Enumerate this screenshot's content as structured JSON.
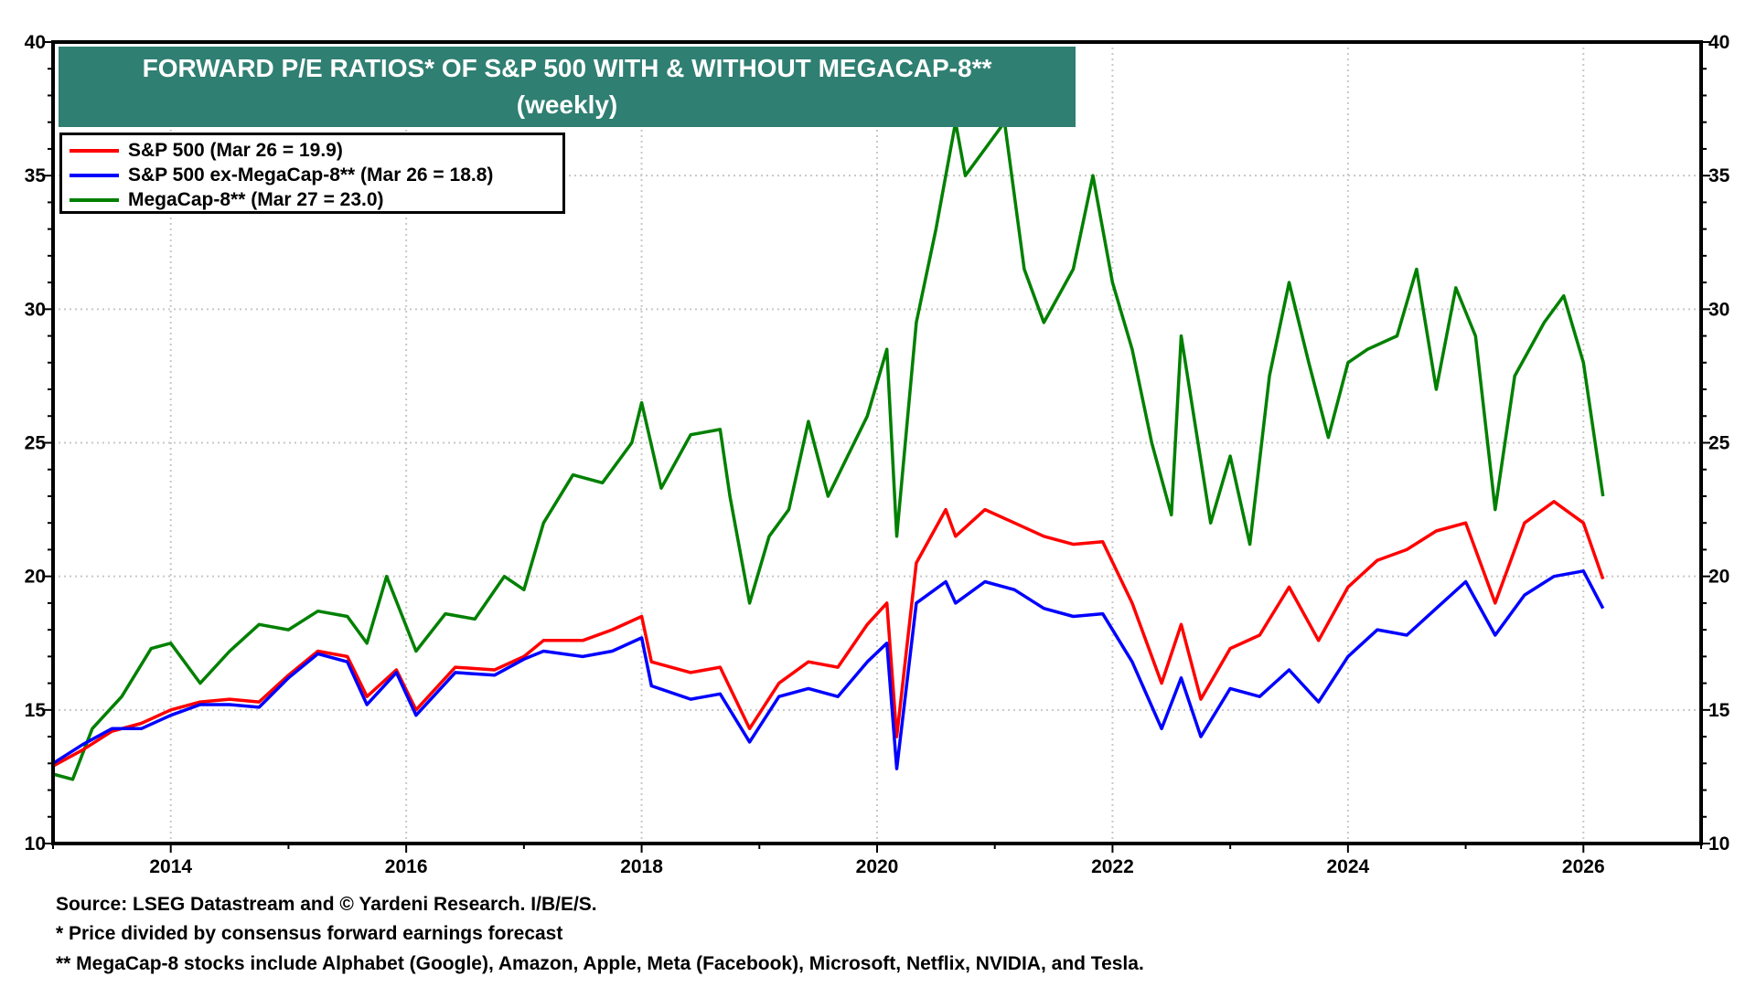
{
  "chart_data": {
    "type": "line",
    "title": "FORWARD P/E RATIOS* OF S&P 500 WITH & WITHOUT  MEGACAP-8**",
    "subtitle": "(weekly)",
    "xlabel": "",
    "ylabel": "",
    "xlim": [
      "2013-01",
      "2027-01"
    ],
    "ylim": [
      10,
      40
    ],
    "y_ticks": [
      "10",
      "15",
      "20",
      "25",
      "30",
      "35",
      "40"
    ],
    "x_ticks": [
      "2014",
      "2016",
      "2018",
      "2020",
      "2022",
      "2024",
      "2026"
    ],
    "grid": true,
    "legend_position": "top-left",
    "series": [
      {
        "name": "S&P 500 (Mar 26 = 19.9)",
        "color": "#ff0000",
        "points": [
          [
            "2013-01",
            12.9
          ],
          [
            "2013-04",
            13.5
          ],
          [
            "2013-07",
            14.2
          ],
          [
            "2013-10",
            14.5
          ],
          [
            "2014-01",
            15.0
          ],
          [
            "2014-04",
            15.3
          ],
          [
            "2014-07",
            15.4
          ],
          [
            "2014-10",
            15.3
          ],
          [
            "2015-01",
            16.3
          ],
          [
            "2015-04",
            17.2
          ],
          [
            "2015-07",
            17.0
          ],
          [
            "2015-09",
            15.5
          ],
          [
            "2015-12",
            16.5
          ],
          [
            "2016-02",
            15.0
          ],
          [
            "2016-06",
            16.6
          ],
          [
            "2016-10",
            16.5
          ],
          [
            "2017-01",
            17.0
          ],
          [
            "2017-03",
            17.6
          ],
          [
            "2017-07",
            17.6
          ],
          [
            "2017-10",
            18.0
          ],
          [
            "2018-01",
            18.5
          ],
          [
            "2018-02",
            16.8
          ],
          [
            "2018-06",
            16.4
          ],
          [
            "2018-09",
            16.6
          ],
          [
            "2018-12",
            14.3
          ],
          [
            "2019-03",
            16.0
          ],
          [
            "2019-06",
            16.8
          ],
          [
            "2019-09",
            16.6
          ],
          [
            "2019-12",
            18.2
          ],
          [
            "2020-02",
            19.0
          ],
          [
            "2020-03",
            14.0
          ],
          [
            "2020-05",
            20.5
          ],
          [
            "2020-08",
            22.5
          ],
          [
            "2020-09",
            21.5
          ],
          [
            "2020-12",
            22.5
          ],
          [
            "2021-03",
            22.0
          ],
          [
            "2021-06",
            21.5
          ],
          [
            "2021-09",
            21.2
          ],
          [
            "2021-12",
            21.3
          ],
          [
            "2022-03",
            19.0
          ],
          [
            "2022-06",
            16.0
          ],
          [
            "2022-08",
            18.2
          ],
          [
            "2022-10",
            15.4
          ],
          [
            "2023-01",
            17.3
          ],
          [
            "2023-04",
            17.8
          ],
          [
            "2023-07",
            19.6
          ],
          [
            "2023-10",
            17.6
          ],
          [
            "2024-01",
            19.6
          ],
          [
            "2024-04",
            20.6
          ],
          [
            "2024-07",
            21.0
          ],
          [
            "2024-10",
            21.7
          ],
          [
            "2025-01",
            22.0
          ],
          [
            "2025-04",
            19.0
          ],
          [
            "2025-07",
            22.0
          ],
          [
            "2025-10",
            22.8
          ],
          [
            "2026-01",
            22.0
          ],
          [
            "2026-03",
            19.9
          ]
        ]
      },
      {
        "name": "S&P 500 ex-MegaCap-8** (Mar 26 = 18.8)",
        "color": "#0000ff",
        "points": [
          [
            "2013-01",
            13.0
          ],
          [
            "2013-04",
            13.7
          ],
          [
            "2013-07",
            14.3
          ],
          [
            "2013-10",
            14.3
          ],
          [
            "2014-01",
            14.8
          ],
          [
            "2014-04",
            15.2
          ],
          [
            "2014-07",
            15.2
          ],
          [
            "2014-10",
            15.1
          ],
          [
            "2015-01",
            16.2
          ],
          [
            "2015-04",
            17.1
          ],
          [
            "2015-07",
            16.8
          ],
          [
            "2015-09",
            15.2
          ],
          [
            "2015-12",
            16.4
          ],
          [
            "2016-02",
            14.8
          ],
          [
            "2016-06",
            16.4
          ],
          [
            "2016-10",
            16.3
          ],
          [
            "2017-01",
            16.9
          ],
          [
            "2017-03",
            17.2
          ],
          [
            "2017-07",
            17.0
          ],
          [
            "2017-10",
            17.2
          ],
          [
            "2018-01",
            17.7
          ],
          [
            "2018-02",
            15.9
          ],
          [
            "2018-06",
            15.4
          ],
          [
            "2018-09",
            15.6
          ],
          [
            "2018-12",
            13.8
          ],
          [
            "2019-03",
            15.5
          ],
          [
            "2019-06",
            15.8
          ],
          [
            "2019-09",
            15.5
          ],
          [
            "2019-12",
            16.8
          ],
          [
            "2020-02",
            17.5
          ],
          [
            "2020-03",
            12.8
          ],
          [
            "2020-05",
            19.0
          ],
          [
            "2020-08",
            19.8
          ],
          [
            "2020-09",
            19.0
          ],
          [
            "2020-12",
            19.8
          ],
          [
            "2021-03",
            19.5
          ],
          [
            "2021-06",
            18.8
          ],
          [
            "2021-09",
            18.5
          ],
          [
            "2021-12",
            18.6
          ],
          [
            "2022-03",
            16.8
          ],
          [
            "2022-06",
            14.3
          ],
          [
            "2022-08",
            16.2
          ],
          [
            "2022-10",
            14.0
          ],
          [
            "2023-01",
            15.8
          ],
          [
            "2023-04",
            15.5
          ],
          [
            "2023-07",
            16.5
          ],
          [
            "2023-10",
            15.3
          ],
          [
            "2024-01",
            17.0
          ],
          [
            "2024-04",
            18.0
          ],
          [
            "2024-07",
            17.8
          ],
          [
            "2024-10",
            18.8
          ],
          [
            "2025-01",
            19.8
          ],
          [
            "2025-04",
            17.8
          ],
          [
            "2025-07",
            19.3
          ],
          [
            "2025-10",
            20.0
          ],
          [
            "2026-01",
            20.2
          ],
          [
            "2026-03",
            18.8
          ]
        ]
      },
      {
        "name": "MegaCap-8** (Mar 27 = 23.0)",
        "color": "#008000",
        "points": [
          [
            "2013-01",
            12.6
          ],
          [
            "2013-03",
            12.4
          ],
          [
            "2013-05",
            14.3
          ],
          [
            "2013-08",
            15.5
          ],
          [
            "2013-11",
            17.3
          ],
          [
            "2014-01",
            17.5
          ],
          [
            "2014-04",
            16.0
          ],
          [
            "2014-07",
            17.2
          ],
          [
            "2014-10",
            18.2
          ],
          [
            "2015-01",
            18.0
          ],
          [
            "2015-04",
            18.7
          ],
          [
            "2015-07",
            18.5
          ],
          [
            "2015-09",
            17.5
          ],
          [
            "2015-11",
            20.0
          ],
          [
            "2016-02",
            17.2
          ],
          [
            "2016-05",
            18.6
          ],
          [
            "2016-08",
            18.4
          ],
          [
            "2016-11",
            20.0
          ],
          [
            "2017-01",
            19.5
          ],
          [
            "2017-03",
            22.0
          ],
          [
            "2017-06",
            23.8
          ],
          [
            "2017-09",
            23.5
          ],
          [
            "2017-12",
            25.0
          ],
          [
            "2018-01",
            26.5
          ],
          [
            "2018-03",
            23.3
          ],
          [
            "2018-06",
            25.3
          ],
          [
            "2018-09",
            25.5
          ],
          [
            "2018-10",
            23.0
          ],
          [
            "2018-12",
            19.0
          ],
          [
            "2019-02",
            21.5
          ],
          [
            "2019-04",
            22.5
          ],
          [
            "2019-06",
            25.8
          ],
          [
            "2019-08",
            23.0
          ],
          [
            "2019-10",
            24.5
          ],
          [
            "2019-12",
            26.0
          ],
          [
            "2020-02",
            28.5
          ],
          [
            "2020-03",
            21.5
          ],
          [
            "2020-05",
            29.5
          ],
          [
            "2020-07",
            33.0
          ],
          [
            "2020-09",
            37.0
          ],
          [
            "2020-10",
            35.0
          ],
          [
            "2020-12",
            36.0
          ],
          [
            "2021-02",
            37.0
          ],
          [
            "2021-04",
            31.5
          ],
          [
            "2021-06",
            29.5
          ],
          [
            "2021-09",
            31.5
          ],
          [
            "2021-11",
            35.0
          ],
          [
            "2022-01",
            31.0
          ],
          [
            "2022-03",
            28.5
          ],
          [
            "2022-05",
            25.0
          ],
          [
            "2022-07",
            22.3
          ],
          [
            "2022-08",
            29.0
          ],
          [
            "2022-11",
            22.0
          ],
          [
            "2023-01",
            24.5
          ],
          [
            "2023-03",
            21.2
          ],
          [
            "2023-05",
            27.5
          ],
          [
            "2023-07",
            31.0
          ],
          [
            "2023-09",
            28.0
          ],
          [
            "2023-11",
            25.2
          ],
          [
            "2024-01",
            28.0
          ],
          [
            "2024-03",
            28.5
          ],
          [
            "2024-06",
            29.0
          ],
          [
            "2024-08",
            31.5
          ],
          [
            "2024-10",
            27.0
          ],
          [
            "2024-12",
            30.8
          ],
          [
            "2025-02",
            29.0
          ],
          [
            "2025-04",
            22.5
          ],
          [
            "2025-06",
            27.5
          ],
          [
            "2025-09",
            29.5
          ],
          [
            "2025-11",
            30.5
          ],
          [
            "2026-01",
            28.0
          ],
          [
            "2026-03",
            23.0
          ]
        ]
      }
    ]
  },
  "footnotes": {
    "source": "Source: LSEG Datastream and © Yardeni Research. I/B/E/S.",
    "note1": "* Price divided by consensus forward earnings forecast",
    "note2": "** MegaCap-8 stocks include Alphabet (Google), Amazon, Apple, Meta (Facebook), Microsoft, Netflix, NVIDIA, and Tesla."
  }
}
